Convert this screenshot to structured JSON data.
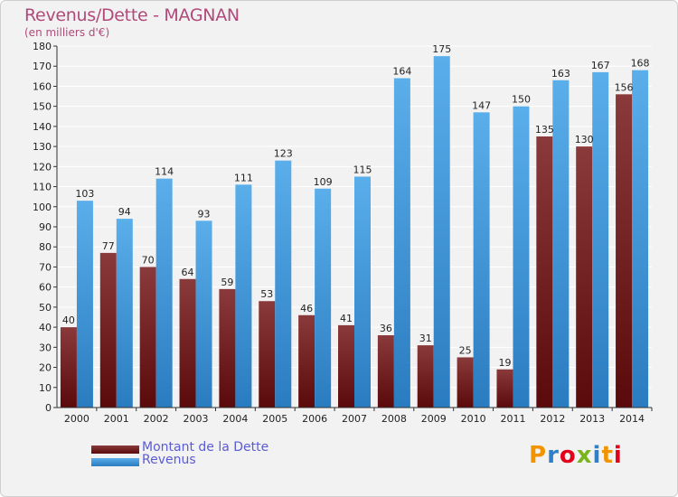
{
  "title": "Revenus/Dette - MAGNAN",
  "subtitle": "(en milliers d'€)",
  "logo": {
    "text": "Proxiti",
    "colors": [
      "#f29400",
      "#2f80c8",
      "#e2001a",
      "#7ab51d",
      "#2f80c8",
      "#f29400",
      "#e2001a"
    ]
  },
  "colors": {
    "debt_light": "#8a3a3a",
    "debt_dark": "#5a0a0a",
    "revenue_light": "#5aaeea",
    "revenue_dark": "#2a7cc0",
    "grid": "#ffffff",
    "background": "#f2f2f2"
  },
  "chart_data": {
    "type": "bar",
    "categories": [
      "2000",
      "2001",
      "2002",
      "2003",
      "2004",
      "2005",
      "2006",
      "2007",
      "2008",
      "2009",
      "2010",
      "2011",
      "2012",
      "2013",
      "2014"
    ],
    "series": [
      {
        "name": "Montant de la Dette",
        "values": [
          40,
          77,
          70,
          64,
          59,
          53,
          46,
          41,
          36,
          31,
          25,
          19,
          135,
          130,
          156
        ]
      },
      {
        "name": "Revenus",
        "values": [
          103,
          94,
          114,
          93,
          111,
          123,
          109,
          115,
          164,
          175,
          147,
          150,
          163,
          167,
          168
        ]
      }
    ],
    "ylim": [
      0,
      180
    ],
    "yticks": [
      0,
      10,
      20,
      30,
      40,
      50,
      60,
      70,
      80,
      90,
      100,
      110,
      120,
      130,
      140,
      150,
      160,
      170,
      180
    ],
    "grid": true,
    "legend": "bottom-left"
  }
}
